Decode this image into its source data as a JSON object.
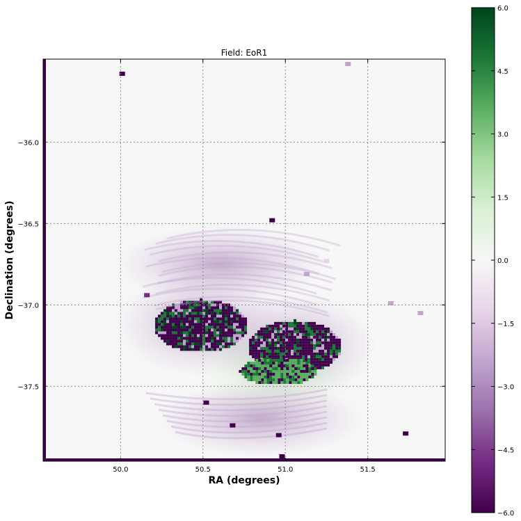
{
  "chart_data": {
    "type": "heatmap",
    "title": "Field: EoR1",
    "xlabel": "RA (degrees)",
    "ylabel": "Declination (degrees)",
    "xlim": [
      49.53,
      51.97
    ],
    "ylim": [
      -37.96,
      -35.49
    ],
    "x_ticks": [
      50.0,
      50.5,
      51.0,
      51.5
    ],
    "x_tick_labels": [
      "50.0",
      "50.5",
      "51.0",
      "51.5"
    ],
    "y_ticks": [
      -36.0,
      -36.5,
      -37.0,
      -37.5
    ],
    "y_tick_labels": [
      "−36.0",
      "−36.5",
      "−37.0",
      "−37.5"
    ],
    "grid": true,
    "colormap": "PRGn",
    "colorbar": {
      "vmin": -6.0,
      "vmax": 6.0,
      "ticks": [
        6.0,
        4.5,
        3.0,
        1.5,
        0.0,
        -1.5,
        -3.0,
        -4.5,
        -6.0
      ],
      "tick_labels": [
        "6.0",
        "4.5",
        "3.0",
        "1.5",
        "0.0",
        "−1.5",
        "−3.0",
        "−4.5",
        "−6.0"
      ],
      "colors": [
        "#40004b",
        "#762a83",
        "#9970ab",
        "#c2a5cf",
        "#e7d4e8",
        "#f7f7f7",
        "#d9f0d3",
        "#a6dba0",
        "#5aae61",
        "#1b7837",
        "#00441b"
      ]
    },
    "regions": [
      {
        "name": "central-cluster-west",
        "center": [
          50.48,
          -37.12
        ],
        "value": -6.0
      },
      {
        "name": "central-cluster-east",
        "center": [
          51.05,
          -37.25
        ],
        "value": -6.0
      },
      {
        "name": "central-cluster-green",
        "center": [
          50.95,
          -37.4
        ],
        "value": 4.5
      },
      {
        "name": "diffuse-arc-north",
        "center": [
          50.6,
          -36.75
        ],
        "value": -1.5
      },
      {
        "name": "diffuse-arc-south",
        "center": [
          50.85,
          -37.7
        ],
        "value": -1.5
      }
    ],
    "point_sources": [
      {
        "ra": 50.01,
        "dec": -35.58,
        "value": -6.0
      },
      {
        "ra": 51.38,
        "dec": -35.52,
        "value": -3.0
      },
      {
        "ra": 50.92,
        "dec": -36.48,
        "value": -6.0
      },
      {
        "ra": 50.16,
        "dec": -36.94,
        "value": -4.5
      },
      {
        "ra": 51.64,
        "dec": -36.99,
        "value": -3.0
      },
      {
        "ra": 51.82,
        "dec": -37.05,
        "value": -3.0
      },
      {
        "ra": 50.52,
        "dec": -37.6,
        "value": -6.0
      },
      {
        "ra": 50.68,
        "dec": -37.74,
        "value": -6.0
      },
      {
        "ra": 50.96,
        "dec": -37.8,
        "value": -6.0
      },
      {
        "ra": 51.73,
        "dec": -37.79,
        "value": -6.0
      },
      {
        "ra": 50.98,
        "dec": -37.93,
        "value": -6.0
      },
      {
        "ra": 51.13,
        "dec": -36.81,
        "value": -3.0
      },
      {
        "ra": 51.25,
        "dec": -36.73,
        "value": -1.5
      }
    ]
  }
}
